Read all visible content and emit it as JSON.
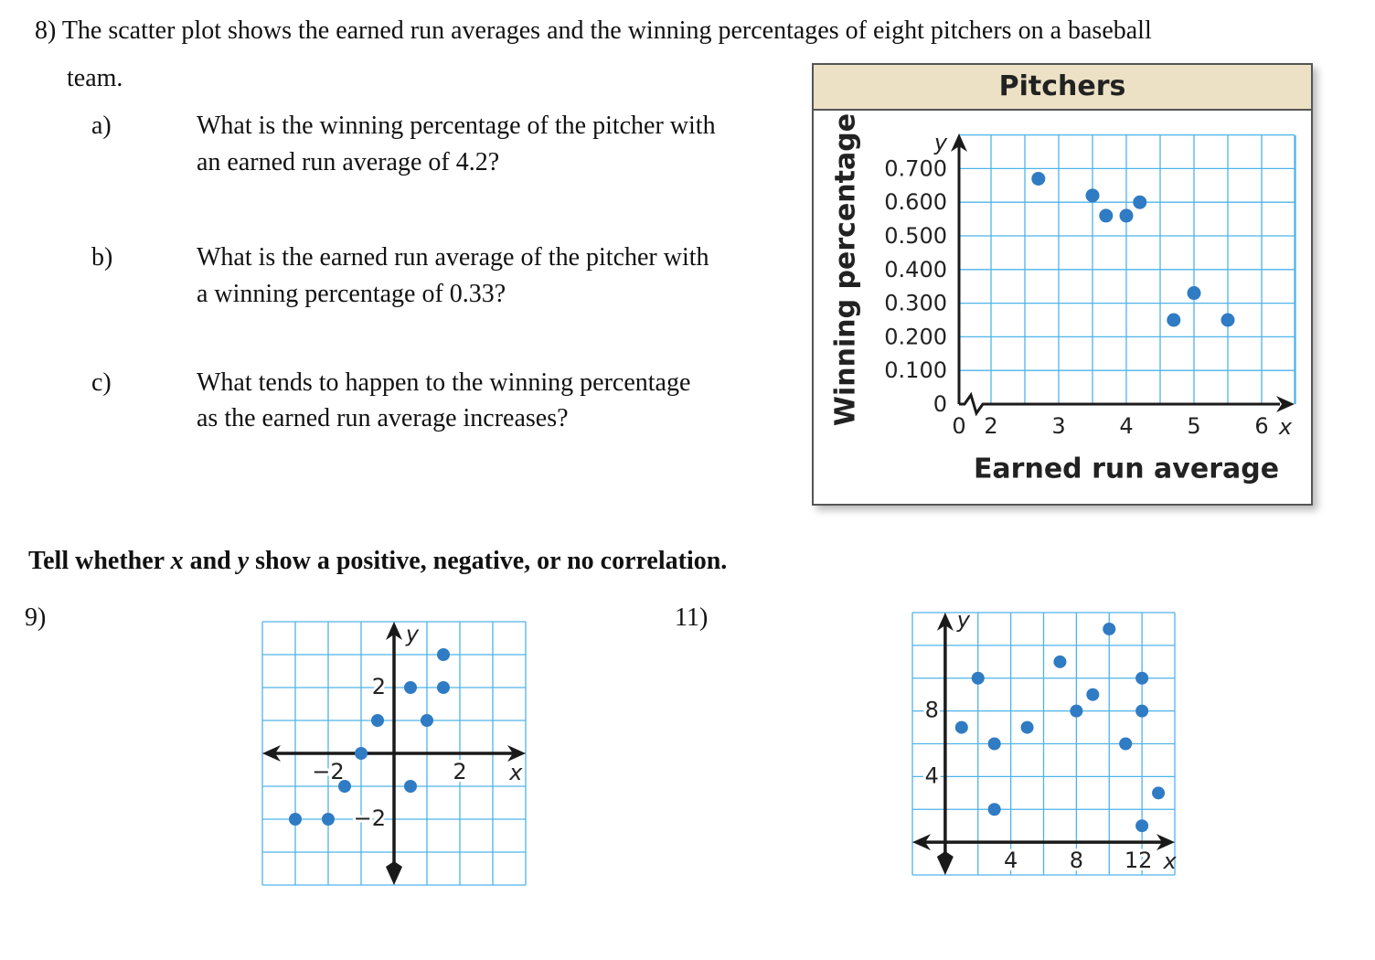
{
  "q8": {
    "number": "8)",
    "stem_line1": "The scatter plot shows the earned run averages and the winning percentages of eight pitchers on a baseball",
    "stem_line2": "team.",
    "parts": [
      {
        "label": "a)",
        "line1": "What is the winning percentage of the pitcher with",
        "line2": "an earned run average of 4.2?"
      },
      {
        "label": "b)",
        "line1": "What is the earned run average of the pitcher with",
        "line2": "a winning percentage of 0.33?"
      },
      {
        "label": "c)",
        "line1": "What tends to happen to the winning percentage",
        "line2": "as the earned run average increases?"
      }
    ]
  },
  "instruction": {
    "pre": "Tell whether ",
    "x": "x",
    "mid": " and ",
    "y": "y",
    "post": " show a positive, negative, or no correlation."
  },
  "q9": {
    "number": "9)"
  },
  "q11": {
    "number": "11)"
  },
  "colors": {
    "grid": "#4fb3ea",
    "point": "#2f7bc4",
    "title_bg": "#ece1c5",
    "axis": "#1a1a1a"
  },
  "chart_data": [
    {
      "type": "scatter",
      "title": "Pitchers",
      "xlabel": "Earned run average",
      "ylabel": "Winning percentage",
      "x_axis_var": "x",
      "y_axis_var": "y",
      "x_axis_break": true,
      "xlim": [
        2,
        6.5
      ],
      "ylim": [
        0,
        0.8
      ],
      "x_grid_step": 0.5,
      "y_grid_step": 0.1,
      "grid": true,
      "x_ticks": [
        "0",
        "2",
        "3",
        "4",
        "5",
        "6"
      ],
      "y_ticks": [
        "0",
        "0.100",
        "0.200",
        "0.300",
        "0.400",
        "0.500",
        "0.600",
        "0.700"
      ],
      "points": [
        [
          2.7,
          0.67
        ],
        [
          3.5,
          0.62
        ],
        [
          3.7,
          0.56
        ],
        [
          4.0,
          0.56
        ],
        [
          4.2,
          0.6
        ],
        [
          4.7,
          0.25
        ],
        [
          5.0,
          0.33
        ],
        [
          5.5,
          0.25
        ]
      ]
    },
    {
      "type": "scatter",
      "x_axis_var": "x",
      "y_axis_var": "y",
      "xlim": [
        -4,
        4
      ],
      "ylim": [
        -4,
        4
      ],
      "grid": true,
      "grid_step": 1,
      "x_ticks": [
        "−2",
        "2"
      ],
      "y_ticks": [
        "2",
        "−2"
      ],
      "points": [
        [
          -3,
          -2
        ],
        [
          -2,
          -2
        ],
        [
          -1.5,
          -1
        ],
        [
          -1,
          0
        ],
        [
          -0.5,
          1
        ],
        [
          0.5,
          2
        ],
        [
          0.5,
          -1
        ],
        [
          1,
          1
        ],
        [
          1.5,
          2
        ],
        [
          1.5,
          3
        ]
      ]
    },
    {
      "type": "scatter",
      "x_axis_var": "x",
      "y_axis_var": "y",
      "xlim": [
        -2,
        14
      ],
      "ylim": [
        -2,
        14
      ],
      "grid": true,
      "grid_step": 2,
      "x_ticks": [
        "4",
        "8",
        "12"
      ],
      "y_ticks": [
        "4",
        "8"
      ],
      "points": [
        [
          1,
          7
        ],
        [
          2,
          10
        ],
        [
          3,
          6
        ],
        [
          3,
          2
        ],
        [
          5,
          7
        ],
        [
          7,
          11
        ],
        [
          8,
          8
        ],
        [
          9,
          9
        ],
        [
          10,
          13
        ],
        [
          11,
          6
        ],
        [
          12,
          10
        ],
        [
          12,
          8
        ],
        [
          12,
          1
        ],
        [
          13,
          3
        ]
      ]
    }
  ]
}
